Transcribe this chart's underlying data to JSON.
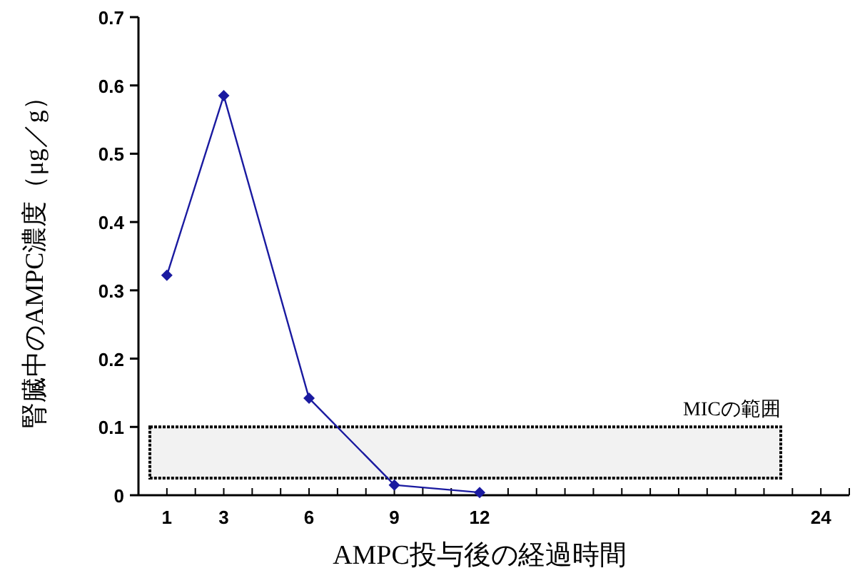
{
  "chart_data": {
    "type": "line",
    "xlabel": "AMPC投与後の経過時間",
    "ylabel": "腎臓中のAMPC濃度（μg／g）",
    "x": [
      1,
      3,
      6,
      9,
      12
    ],
    "series": [
      {
        "color": "#1a1aa0",
        "values": [
          0.322,
          0.585,
          0.142,
          0.015,
          0.004
        ]
      }
    ],
    "xlim": [
      0,
      25
    ],
    "xticks": [
      {
        "value": 0,
        "label": null
      },
      1,
      {
        "value": 2,
        "label": null
      },
      3,
      {
        "value": 4,
        "label": null
      },
      {
        "value": 5,
        "label": null
      },
      6,
      {
        "value": 7,
        "label": null
      },
      {
        "value": 8,
        "label": null
      },
      9,
      {
        "value": 10,
        "label": null
      },
      {
        "value": 11,
        "label": null
      },
      12,
      {
        "value": 13,
        "label": null
      },
      {
        "value": 14,
        "label": null
      },
      {
        "value": 15,
        "label": null
      },
      {
        "value": 16,
        "label": null
      },
      {
        "value": 17,
        "label": null
      },
      {
        "value": 18,
        "label": null
      },
      {
        "value": 19,
        "label": null
      },
      {
        "value": 20,
        "label": null
      },
      {
        "value": 21,
        "label": null
      },
      {
        "value": 22,
        "label": null
      },
      {
        "value": 23,
        "label": null
      },
      24,
      {
        "value": 25,
        "label": null
      }
    ],
    "ylim": [
      0,
      0.7
    ],
    "yticks": [
      0,
      0.1,
      0.2,
      0.3,
      0.4,
      0.5,
      0.6,
      0.7
    ],
    "bands": [
      {
        "axis": "y",
        "from": 0.025,
        "to": 0.1,
        "label": "MICの範囲",
        "color": "#000000"
      }
    ],
    "marker": "diamond",
    "line_style": "solid",
    "grid": false
  }
}
